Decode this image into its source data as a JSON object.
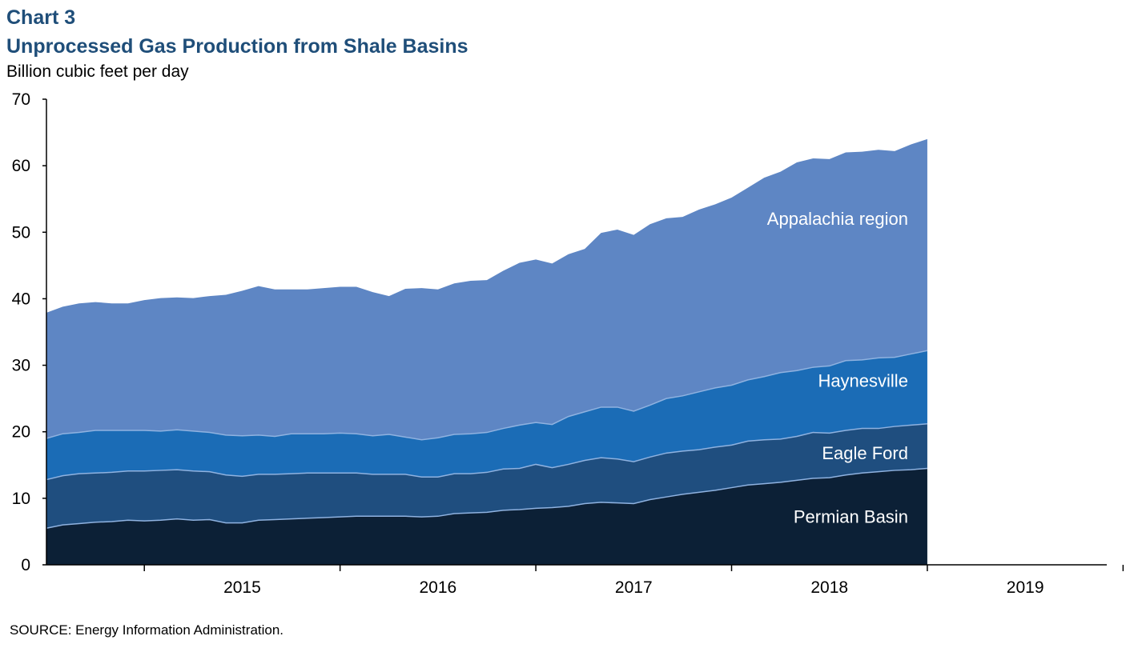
{
  "chart_label": "Chart 3",
  "source": "SOURCE: Energy Information Administration.",
  "colors": {
    "permian": "#0c2036",
    "eagle_ford": "#1f4e7f",
    "haynesville": "#1b6cb6",
    "appalachia": "#5e86c4",
    "separator": "#8fb2e0",
    "axis": "#000000",
    "series_label": "#ffffff"
  },
  "chart_data": {
    "type": "area",
    "stacked": true,
    "title": "Unprocessed Gas Production from Shale Basins",
    "ylabel": "Billion cubic feet per day",
    "xlabel": "",
    "ylim": [
      0,
      70
    ],
    "yticks": [
      0,
      10,
      20,
      30,
      40,
      50,
      60,
      70
    ],
    "xlim": [
      "2014-07",
      "2019-12"
    ],
    "xtick_labels": [
      "2015",
      "2016",
      "2017",
      "2018",
      "2019"
    ],
    "grid": false,
    "legend": "labels placed inside areas (right side)",
    "x": [
      "2014-07",
      "2014-08",
      "2014-09",
      "2014-10",
      "2014-11",
      "2014-12",
      "2015-01",
      "2015-02",
      "2015-03",
      "2015-04",
      "2015-05",
      "2015-06",
      "2015-07",
      "2015-08",
      "2015-09",
      "2015-10",
      "2015-11",
      "2015-12",
      "2016-01",
      "2016-02",
      "2016-03",
      "2016-04",
      "2016-05",
      "2016-06",
      "2016-07",
      "2016-08",
      "2016-09",
      "2016-10",
      "2016-11",
      "2016-12",
      "2017-01",
      "2017-02",
      "2017-03",
      "2017-04",
      "2017-05",
      "2017-06",
      "2017-07",
      "2017-08",
      "2017-09",
      "2017-10",
      "2017-11",
      "2017-12",
      "2018-01",
      "2018-02",
      "2018-03",
      "2018-04",
      "2018-05",
      "2018-06",
      "2018-07",
      "2018-08",
      "2018-09",
      "2018-10",
      "2018-11",
      "2018-12",
      "2019-01"
    ],
    "series": [
      {
        "name": "Permian Basin",
        "values": [
          5.5,
          6.0,
          6.2,
          6.4,
          6.5,
          6.7,
          6.6,
          6.7,
          6.9,
          6.7,
          6.8,
          6.3,
          6.3,
          6.7,
          6.8,
          6.9,
          7.0,
          7.1,
          7.2,
          7.3,
          7.3,
          7.3,
          7.3,
          7.2,
          7.3,
          7.7,
          7.8,
          7.9,
          8.2,
          8.3,
          8.5,
          8.6,
          8.8,
          9.2,
          9.4,
          9.3,
          9.2,
          9.8,
          10.2,
          10.6,
          10.9,
          11.2,
          11.6,
          12.0,
          12.2,
          12.4,
          12.7,
          13.0,
          13.1,
          13.5,
          13.8,
          14.0,
          14.2,
          14.3,
          14.5
        ]
      },
      {
        "name": "Eagle Ford",
        "values": [
          7.3,
          7.4,
          7.5,
          7.4,
          7.4,
          7.4,
          7.5,
          7.5,
          7.4,
          7.4,
          7.2,
          7.2,
          7.0,
          6.9,
          6.8,
          6.8,
          6.8,
          6.7,
          6.6,
          6.5,
          6.3,
          6.3,
          6.3,
          6.0,
          5.9,
          6.0,
          5.9,
          6.0,
          6.2,
          6.2,
          6.6,
          6.0,
          6.3,
          6.5,
          6.7,
          6.6,
          6.3,
          6.4,
          6.6,
          6.5,
          6.4,
          6.5,
          6.4,
          6.6,
          6.6,
          6.5,
          6.6,
          6.9,
          6.7,
          6.7,
          6.7,
          6.5,
          6.6,
          6.7,
          6.7
        ]
      },
      {
        "name": "Haynesville",
        "values": [
          6.2,
          6.3,
          6.2,
          6.4,
          6.3,
          6.1,
          6.1,
          5.9,
          6.0,
          6.0,
          5.9,
          6.0,
          6.1,
          5.9,
          5.7,
          6.0,
          5.9,
          5.9,
          6.0,
          5.9,
          5.8,
          6.0,
          5.6,
          5.6,
          5.9,
          5.9,
          6.0,
          6.0,
          6.1,
          6.5,
          6.3,
          6.5,
          7.2,
          7.3,
          7.6,
          7.8,
          7.6,
          7.8,
          8.2,
          8.3,
          8.7,
          8.9,
          9.0,
          9.2,
          9.5,
          10.0,
          9.9,
          9.8,
          10.1,
          10.5,
          10.3,
          10.6,
          10.4,
          10.7,
          11.0
        ]
      },
      {
        "name": "Appalachia region",
        "values": [
          18.9,
          19.1,
          19.4,
          19.3,
          19.1,
          19.1,
          19.6,
          20.0,
          19.9,
          20.0,
          20.5,
          21.1,
          21.8,
          22.4,
          22.1,
          21.7,
          21.7,
          21.9,
          22.0,
          22.1,
          21.6,
          20.8,
          22.3,
          22.8,
          22.3,
          22.7,
          23.0,
          22.9,
          23.7,
          24.4,
          24.5,
          24.2,
          24.4,
          24.5,
          26.2,
          26.7,
          26.5,
          27.2,
          27.1,
          26.9,
          27.4,
          27.6,
          28.2,
          28.9,
          29.9,
          30.2,
          31.3,
          31.4,
          31.1,
          31.3,
          31.3,
          31.3,
          31.0,
          31.5,
          31.8
        ]
      }
    ]
  }
}
